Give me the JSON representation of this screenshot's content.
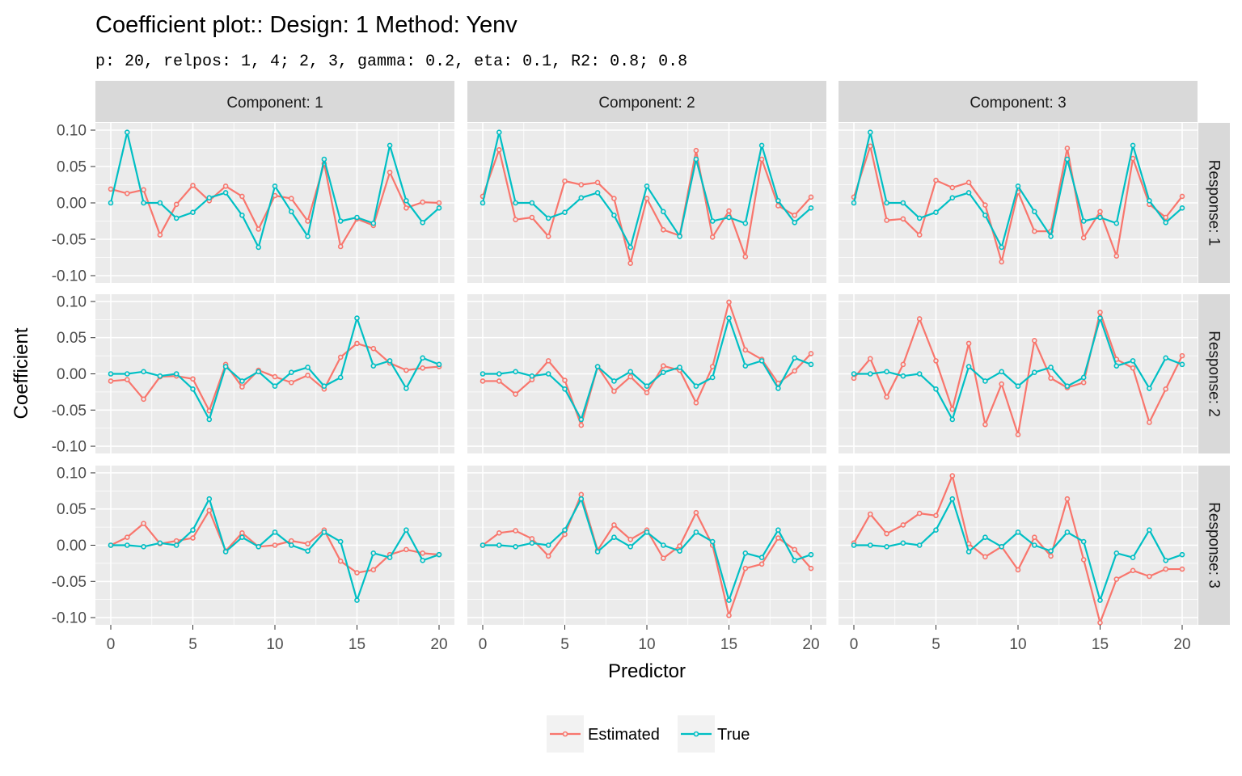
{
  "title": "Coefficient plot::  Design: 1 Method: Yenv",
  "subtitle": "p: 20, relpos: 1, 4; 2, 3, gamma: 0.2, eta: 0.1, R2: 0.8; 0.8",
  "colors": {
    "estimated": "#F8766D",
    "true": "#00BFC4",
    "panel_bg": "#EBEBEB",
    "strip_bg": "#D9D9D9",
    "grid": "#FFFFFF"
  },
  "chart_data": {
    "type": "line",
    "facet_layout": "grid",
    "xlabel": "Predictor",
    "ylabel": "Coefficient",
    "xlim": [
      0,
      20
    ],
    "ylim": [
      -0.11,
      0.11
    ],
    "x_ticks": [
      "0",
      "5",
      "10",
      "15",
      "20"
    ],
    "y_ticks": [
      "0.10",
      "0.05",
      "0.00",
      "-0.05",
      "-0.10"
    ],
    "col_facets": [
      "Component: 1",
      "Component: 2",
      "Component: 3"
    ],
    "row_facets": [
      "Response: 1",
      "Response: 2",
      "Response: 3"
    ],
    "legend": {
      "position": "bottom",
      "entries": [
        "Estimated",
        "True"
      ]
    },
    "x": [
      0,
      1,
      2,
      3,
      4,
      5,
      6,
      7,
      8,
      9,
      10,
      11,
      12,
      13,
      14,
      15,
      16,
      17,
      18,
      19,
      20
    ],
    "true": [
      [
        0.0,
        0.097,
        0.0,
        0.0,
        -0.021,
        -0.013,
        0.007,
        0.014,
        -0.017,
        -0.061,
        0.023,
        -0.012,
        -0.046,
        0.06,
        -0.025,
        -0.02,
        -0.028,
        0.079,
        0.003,
        -0.027,
        -0.007
      ],
      [
        0.0,
        0.0,
        0.003,
        -0.003,
        0.0,
        -0.021,
        -0.063,
        0.01,
        -0.01,
        0.003,
        -0.017,
        0.002,
        0.009,
        -0.017,
        -0.005,
        0.077,
        0.011,
        0.018,
        -0.02,
        0.022,
        0.013
      ],
      [
        0.0,
        0.0,
        -0.002,
        0.003,
        0.0,
        0.021,
        0.064,
        -0.009,
        0.011,
        -0.002,
        0.018,
        0.0,
        -0.008,
        0.018,
        0.005,
        -0.076,
        -0.011,
        -0.017,
        0.021,
        -0.021,
        -0.013
      ]
    ],
    "estimated": [
      [
        [
          0.019,
          0.013,
          0.018,
          -0.044,
          -0.002,
          0.024,
          0.003,
          0.023,
          0.009,
          -0.036,
          0.01,
          0.006,
          -0.025,
          0.054,
          -0.06,
          -0.022,
          -0.031,
          0.042,
          -0.007,
          0.001,
          0.0
        ],
        [
          0.009,
          0.073,
          -0.023,
          -0.02,
          -0.046,
          0.03,
          0.025,
          0.028,
          0.006,
          -0.083,
          0.006,
          -0.037,
          -0.045,
          0.072,
          -0.047,
          -0.011,
          -0.074,
          0.06,
          -0.004,
          -0.017,
          0.008
        ],
        [
          0.008,
          0.078,
          -0.024,
          -0.022,
          -0.044,
          0.031,
          0.021,
          0.028,
          -0.003,
          -0.081,
          0.015,
          -0.039,
          -0.039,
          0.075,
          -0.048,
          -0.012,
          -0.073,
          0.061,
          -0.002,
          -0.02,
          0.009
        ]
      ],
      [
        [
          -0.01,
          -0.008,
          -0.035,
          -0.004,
          -0.003,
          -0.007,
          -0.051,
          0.013,
          -0.018,
          0.005,
          -0.004,
          -0.012,
          -0.002,
          -0.021,
          0.023,
          0.042,
          0.035,
          0.015,
          0.005,
          0.008,
          0.01
        ],
        [
          -0.01,
          -0.01,
          -0.028,
          -0.008,
          0.018,
          -0.009,
          -0.071,
          0.01,
          -0.024,
          -0.004,
          -0.026,
          0.011,
          0.005,
          -0.04,
          0.01,
          0.099,
          0.033,
          0.02,
          -0.013,
          0.004,
          0.028
        ],
        [
          -0.006,
          0.021,
          -0.032,
          0.013,
          0.076,
          0.018,
          -0.049,
          0.042,
          -0.07,
          -0.014,
          -0.084,
          0.046,
          -0.006,
          -0.019,
          -0.012,
          0.085,
          0.02,
          0.008,
          -0.067,
          -0.021,
          0.025
        ]
      ],
      [
        [
          0.0,
          0.011,
          0.03,
          0.002,
          0.006,
          0.01,
          0.048,
          -0.008,
          0.017,
          -0.002,
          0.0,
          0.006,
          0.002,
          0.021,
          -0.022,
          -0.038,
          -0.034,
          -0.013,
          -0.006,
          -0.011,
          -0.013
        ],
        [
          0.0,
          0.017,
          0.02,
          0.009,
          -0.015,
          0.015,
          0.07,
          -0.007,
          0.028,
          0.008,
          0.021,
          -0.018,
          -0.001,
          0.045,
          0.0,
          -0.097,
          -0.032,
          -0.026,
          0.01,
          -0.006,
          -0.032
        ],
        [
          0.003,
          0.043,
          0.016,
          0.028,
          0.044,
          0.041,
          0.096,
          0.002,
          -0.016,
          -0.002,
          -0.034,
          0.011,
          -0.015,
          0.064,
          -0.02,
          -0.107,
          -0.047,
          -0.035,
          -0.043,
          -0.033,
          -0.033
        ]
      ]
    ]
  }
}
